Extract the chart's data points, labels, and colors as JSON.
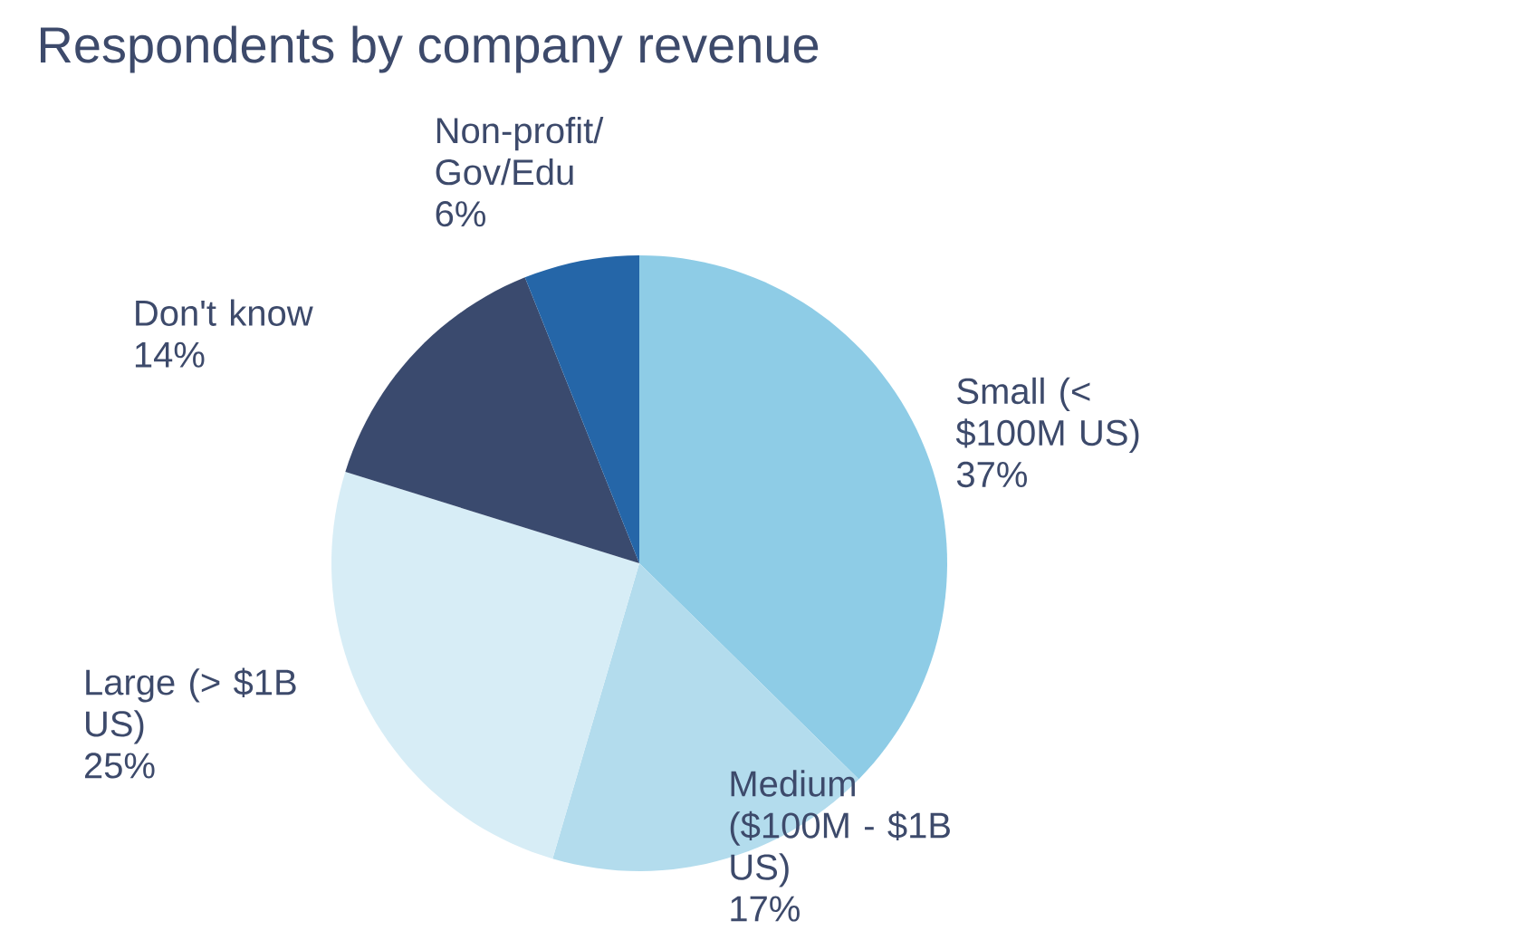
{
  "chart_data": {
    "type": "pie",
    "title": "Respondents by company revenue",
    "categories": [
      "Small (< $100M US)",
      "Medium ($100M - $1B US)",
      "Large (> $1B US)",
      "Don't know",
      "Non-profit/ Gov/Edu"
    ],
    "values": [
      37,
      17,
      25,
      14,
      6
    ],
    "value_labels": [
      "37%",
      "17%",
      "25%",
      "14%",
      "6%"
    ],
    "colors": [
      "#8ecce6",
      "#b3dced",
      "#d7edf6",
      "#3a4a6e",
      "#2566a8"
    ]
  }
}
